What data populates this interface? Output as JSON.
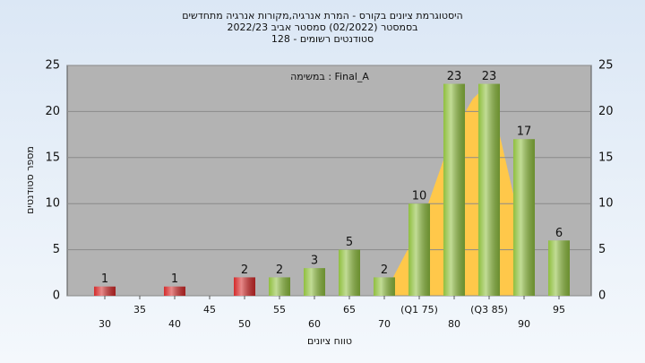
{
  "chart_data": {
    "type": "bar",
    "title": "היסטוגרמת ציונים בקורס - המרת אנרגיה,מקורות אנרגיה מתחדשים",
    "subtitle": "בסמסטר  (02/2022)  סמסטר אביב 2022/23",
    "subtitle2": "סטודנטים רשומים - 128",
    "annotation": "במשימה : Final_A",
    "y_label": "מספר סטודנטים",
    "x_label": "טווח ציונים",
    "categories": [
      "30",
      "35",
      "40",
      "45",
      "50",
      "55",
      "60",
      "65",
      "70",
      "(Q1 75)",
      "80",
      "(Q3 85)",
      "90",
      "95"
    ],
    "values": [
      1,
      0,
      1,
      0,
      2,
      2,
      3,
      5,
      2,
      10,
      23,
      23,
      17,
      6
    ],
    "colors": [
      "#d42a2a",
      "#d42a2a",
      "#d42a2a",
      "#d42a2a",
      "#d42a2a",
      "#8fbf3f",
      "#8fbf3f",
      "#8fbf3f",
      "#8fbf3f",
      "#8fbf3f",
      "#8fbf3f",
      "#8fbf3f",
      "#8fbf3f",
      "#8fbf3f"
    ],
    "ylim": [
      0,
      25
    ],
    "yticks": [
      0,
      5,
      10,
      15,
      20,
      25
    ],
    "grid": true
  }
}
